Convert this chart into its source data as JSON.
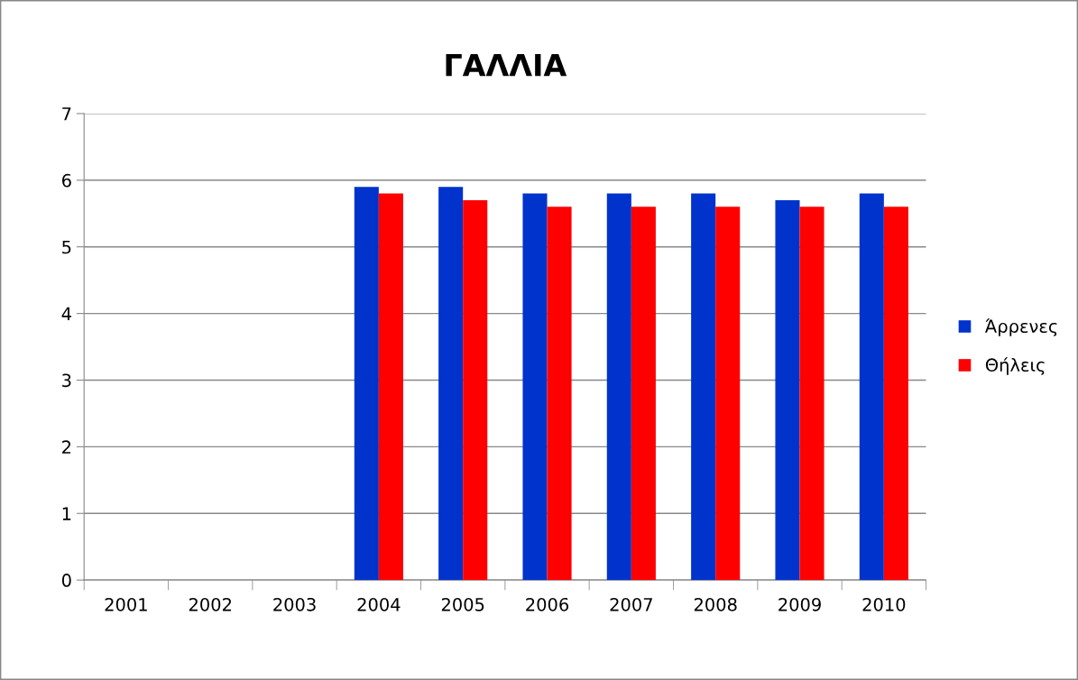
{
  "chart_data": {
    "type": "bar",
    "title": "ΓΑΛΛΙΑ",
    "categories": [
      "2001",
      "2002",
      "2003",
      "2004",
      "2005",
      "2006",
      "2007",
      "2008",
      "2009",
      "2010"
    ],
    "series": [
      {
        "name": "Άρρενες",
        "color": "#0033cc",
        "values": [
          null,
          null,
          null,
          5.9,
          5.9,
          5.8,
          5.8,
          5.8,
          5.7,
          5.8
        ]
      },
      {
        "name": "Θήλεις",
        "color": "#ff0000",
        "values": [
          null,
          null,
          null,
          5.8,
          5.7,
          5.6,
          5.6,
          5.6,
          5.6,
          5.6
        ]
      }
    ],
    "ylim": [
      0,
      7
    ],
    "yticks": [
      0,
      1,
      2,
      3,
      4,
      5,
      6,
      7
    ],
    "grid": "y",
    "legend": "right"
  }
}
